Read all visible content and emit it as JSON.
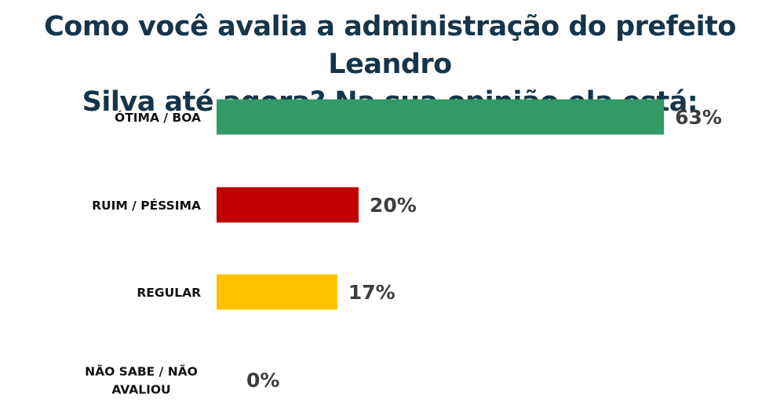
{
  "title_lines": [
    "Como você avalia a administração do prefeito Leandro",
    "Silva até agora? Na sua opinião ela está:"
  ],
  "chart_data": {
    "type": "bar",
    "orientation": "horizontal",
    "title": "Como você avalia a administração do prefeito Leandro Silva até agora? Na sua opinião ela está:",
    "categories": [
      [
        "ÓTIMA / BOA"
      ],
      [
        "RUIM / PÉSSIMA"
      ],
      [
        "REGULAR"
      ],
      [
        "NÃO SABE / NÃO",
        "AVALIOU"
      ]
    ],
    "values": [
      63,
      20,
      17,
      0
    ],
    "value_labels": [
      "63%",
      "20%",
      "17%",
      "0%"
    ],
    "colors": [
      "#339966",
      "#c00000",
      "#ffc000",
      "#999999"
    ],
    "xlim": [
      0,
      100
    ],
    "grid": false,
    "legend": "none"
  }
}
